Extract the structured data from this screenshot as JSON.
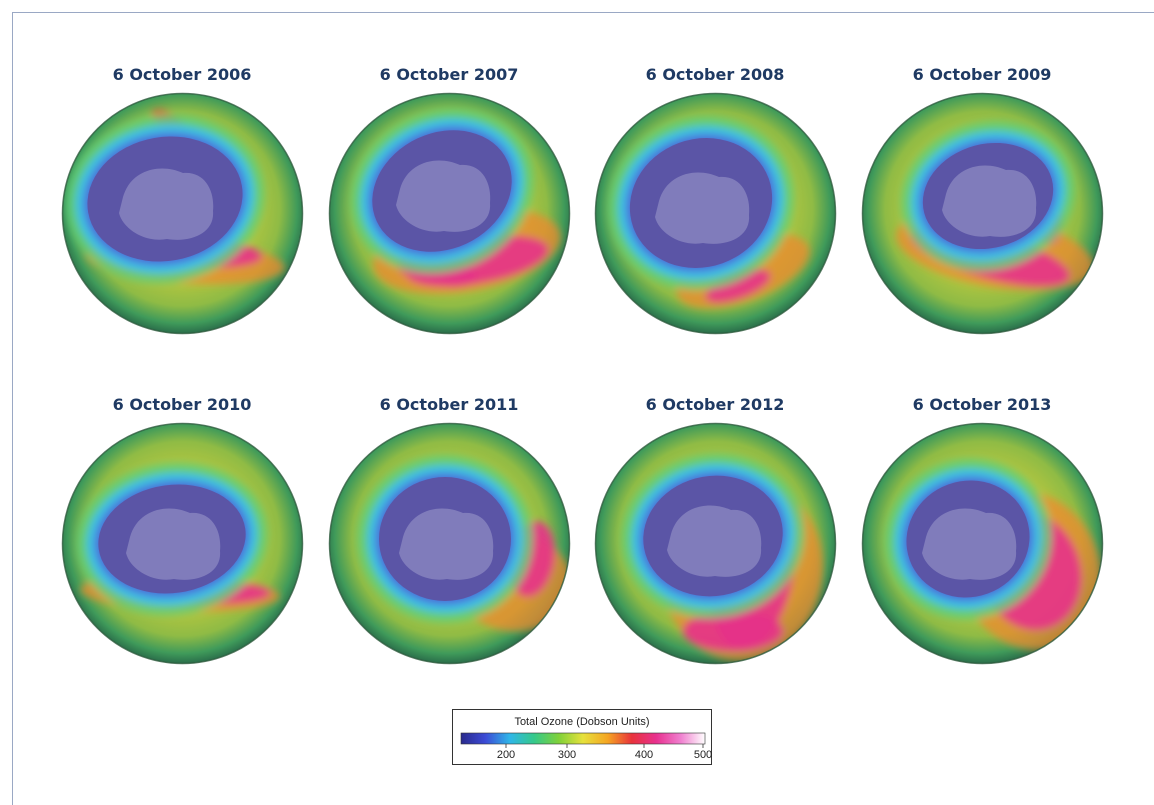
{
  "maps": [
    {
      "date": "6 October 2006"
    },
    {
      "date": "6 October 2007"
    },
    {
      "date": "6 October 2008"
    },
    {
      "date": "6 October 2009"
    },
    {
      "date": "6 October 2010"
    },
    {
      "date": "6 October 2011"
    },
    {
      "date": "6 October 2012"
    },
    {
      "date": "6 October 2013"
    }
  ],
  "legend": {
    "title": "Total Ozone (Dobson Units)",
    "ticks": [
      "200",
      "300",
      "400",
      "500"
    ],
    "range": [
      100,
      500
    ],
    "colors": [
      "#2a2a8c",
      "#3c4bd6",
      "#2fb6e8",
      "#35c98a",
      "#7fd13a",
      "#e6e13c",
      "#f5a623",
      "#e8333b",
      "#e8318f",
      "#f07fcf",
      "#ffffff"
    ]
  },
  "colors": {
    "title": "#1f3a63",
    "hole": "#5b55a6",
    "continent": "#8a86c0"
  }
}
